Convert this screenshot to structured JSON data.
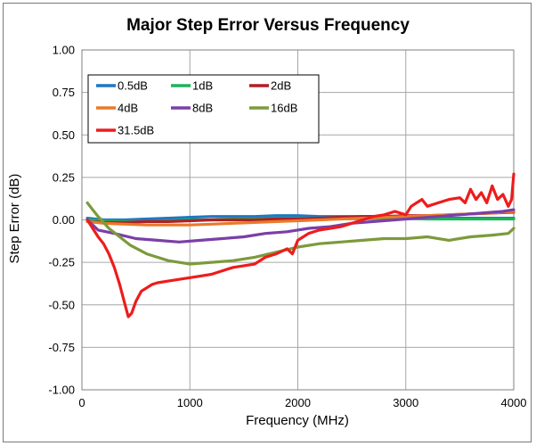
{
  "chart_data": {
    "type": "line",
    "title": "Major Step Error Versus Frequency",
    "xlabel": "Frequency (MHz)",
    "ylabel": "Step Error (dB)",
    "xlim": [
      0,
      4000
    ],
    "ylim": [
      -1.0,
      1.0
    ],
    "x_ticks": [
      0,
      1000,
      2000,
      3000,
      4000
    ],
    "x_tick_labels": [
      "0",
      "1000",
      "2000",
      "3000",
      "4000"
    ],
    "y_ticks": [
      1.0,
      0.75,
      0.5,
      0.25,
      0.0,
      -0.25,
      -0.5,
      -0.75,
      -1.0
    ],
    "y_tick_labels": [
      "1.00",
      "0.75",
      "0.50",
      "0.25",
      "0.00",
      "-0.25",
      "-0.50",
      "-0.75",
      "-1.00"
    ],
    "grid": true,
    "legend_position": "top-left",
    "series": [
      {
        "name": "0.5dB",
        "color": "#1f77c4",
        "x": [
          50,
          200,
          400,
          600,
          800,
          1000,
          1200,
          1400,
          1600,
          1800,
          2000,
          2200,
          2400,
          2600,
          2800,
          3000,
          3200,
          3400,
          3600,
          3800,
          4000
        ],
        "y": [
          0.01,
          0.0,
          0.0,
          0.005,
          0.01,
          0.015,
          0.02,
          0.02,
          0.02,
          0.025,
          0.025,
          0.02,
          0.02,
          0.02,
          0.02,
          0.015,
          0.015,
          0.01,
          0.01,
          0.01,
          0.01
        ]
      },
      {
        "name": "1dB",
        "color": "#19b45a",
        "x": [
          50,
          200,
          400,
          600,
          800,
          1000,
          1200,
          1400,
          1600,
          1800,
          2000,
          2200,
          2400,
          2600,
          2800,
          3000,
          3200,
          3400,
          3600,
          3800,
          4000
        ],
        "y": [
          0.0,
          -0.005,
          -0.01,
          -0.01,
          -0.005,
          0.0,
          0.0,
          0.005,
          0.005,
          0.01,
          0.01,
          0.01,
          0.01,
          0.01,
          0.01,
          0.01,
          0.005,
          0.005,
          0.005,
          0.005,
          0.005
        ]
      },
      {
        "name": "2dB",
        "color": "#b01f24",
        "x": [
          50,
          200,
          400,
          600,
          800,
          1000,
          1200,
          1400,
          1600,
          1800,
          2000,
          2200,
          2400,
          2600,
          2800,
          3000,
          3200,
          3400,
          3600,
          3800,
          4000
        ],
        "y": [
          -0.01,
          -0.015,
          -0.015,
          -0.01,
          -0.01,
          -0.005,
          0.0,
          0.0,
          0.0,
          0.005,
          0.005,
          0.01,
          0.015,
          0.02,
          0.02,
          0.025,
          0.025,
          0.03,
          0.035,
          0.04,
          0.045
        ]
      },
      {
        "name": "4dB",
        "color": "#e87a2a",
        "x": [
          50,
          200,
          400,
          600,
          800,
          1000,
          1200,
          1400,
          1600,
          1800,
          2000,
          2200,
          2400,
          2600,
          2800,
          3000,
          3200,
          3400,
          3600,
          3800,
          4000
        ],
        "y": [
          -0.01,
          -0.02,
          -0.025,
          -0.03,
          -0.03,
          -0.03,
          -0.025,
          -0.02,
          -0.015,
          -0.01,
          -0.005,
          0.0,
          0.005,
          0.01,
          0.015,
          0.02,
          0.025,
          0.03,
          0.035,
          0.04,
          0.05
        ]
      },
      {
        "name": "8dB",
        "color": "#7b3fa6",
        "x": [
          50,
          150,
          300,
          500,
          700,
          900,
          1100,
          1300,
          1500,
          1700,
          1900,
          2100,
          2300,
          2500,
          2700,
          2900,
          3100,
          3300,
          3500,
          3700,
          3900,
          4000
        ],
        "y": [
          0.0,
          -0.06,
          -0.08,
          -0.11,
          -0.12,
          -0.13,
          -0.12,
          -0.11,
          -0.1,
          -0.08,
          -0.07,
          -0.05,
          -0.04,
          -0.02,
          -0.01,
          0.0,
          0.01,
          0.02,
          0.03,
          0.04,
          0.05,
          0.06
        ]
      },
      {
        "name": "16dB",
        "color": "#7d9a3c",
        "x": [
          50,
          100,
          150,
          250,
          350,
          450,
          600,
          800,
          1000,
          1200,
          1400,
          1600,
          1800,
          2000,
          2200,
          2400,
          2600,
          2800,
          3000,
          3200,
          3400,
          3600,
          3800,
          3950,
          4000
        ],
        "y": [
          0.1,
          0.06,
          0.02,
          -0.05,
          -0.1,
          -0.15,
          -0.2,
          -0.24,
          -0.26,
          -0.25,
          -0.24,
          -0.22,
          -0.19,
          -0.16,
          -0.14,
          -0.13,
          -0.12,
          -0.11,
          -0.11,
          -0.1,
          -0.12,
          -0.1,
          -0.09,
          -0.08,
          -0.05
        ]
      },
      {
        "name": "31.5dB",
        "color": "#ee1c1c",
        "x": [
          50,
          100,
          150,
          200,
          250,
          300,
          350,
          400,
          430,
          460,
          500,
          550,
          600,
          650,
          700,
          800,
          900,
          1000,
          1100,
          1200,
          1300,
          1400,
          1500,
          1600,
          1700,
          1800,
          1900,
          1950,
          2000,
          2050,
          2100,
          2200,
          2300,
          2400,
          2500,
          2600,
          2700,
          2800,
          2900,
          3000,
          3050,
          3100,
          3150,
          3200,
          3300,
          3400,
          3500,
          3550,
          3600,
          3650,
          3700,
          3750,
          3800,
          3850,
          3900,
          3950,
          3980,
          4000
        ],
        "y": [
          0.0,
          -0.05,
          -0.1,
          -0.14,
          -0.2,
          -0.28,
          -0.38,
          -0.5,
          -0.57,
          -0.55,
          -0.48,
          -0.42,
          -0.4,
          -0.38,
          -0.37,
          -0.36,
          -0.35,
          -0.34,
          -0.33,
          -0.32,
          -0.3,
          -0.28,
          -0.27,
          -0.26,
          -0.22,
          -0.2,
          -0.17,
          -0.2,
          -0.12,
          -0.1,
          -0.08,
          -0.06,
          -0.05,
          -0.04,
          -0.02,
          0.0,
          0.02,
          0.03,
          0.05,
          0.03,
          0.08,
          0.1,
          0.12,
          0.08,
          0.1,
          0.12,
          0.13,
          0.1,
          0.18,
          0.12,
          0.16,
          0.1,
          0.2,
          0.12,
          0.15,
          0.08,
          0.12,
          0.27
        ]
      }
    ]
  }
}
